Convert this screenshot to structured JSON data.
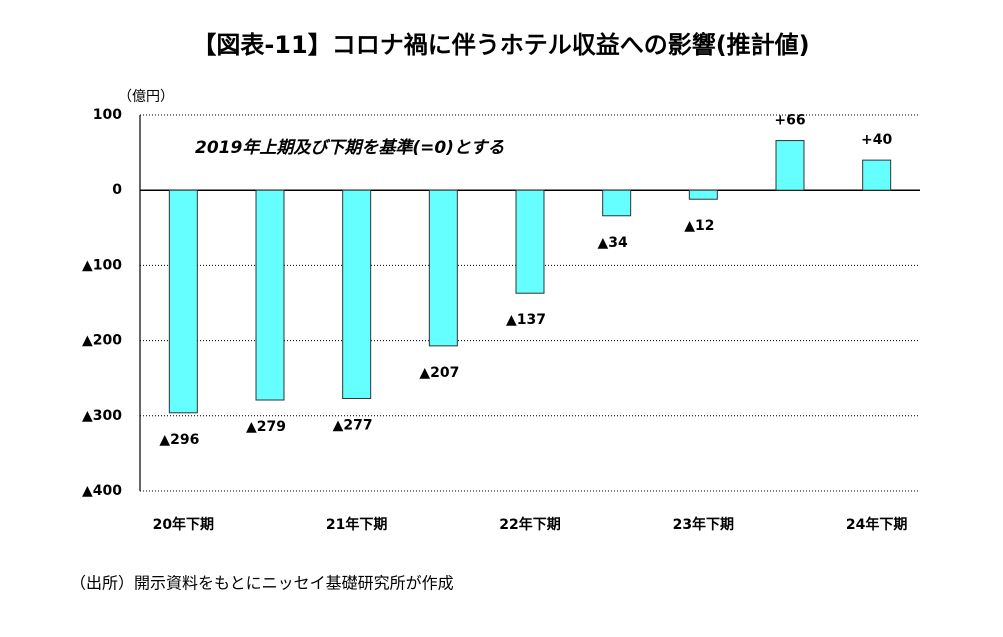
{
  "chart_data": {
    "type": "bar",
    "title": "【図表-11】コロナ禍に伴うホテル収益への影響(推計値)",
    "y_unit": "（億円）",
    "annotation": "2019年上期及び下期を基準(=0)とする",
    "source": "（出所）開示資料をもとにニッセイ基礎研究所が作成",
    "categories": [
      "20年下期",
      null,
      "21年下期",
      null,
      "22年下期",
      null,
      "23年下期",
      null,
      "24年下期"
    ],
    "values": [
      -296,
      -279,
      -277,
      -207,
      -137,
      -34,
      -12,
      66,
      40
    ],
    "value_labels": [
      "▲296",
      "▲279",
      "▲277",
      "▲207",
      "▲137",
      "▲34",
      "▲12",
      "+66",
      "+40"
    ],
    "color": "#66ffff",
    "ylim": [
      -400,
      100
    ],
    "yticks": [
      100,
      0,
      {
        "value": -100,
        "label": "▲100"
      },
      {
        "value": -200,
        "label": "▲200"
      },
      {
        "value": -300,
        "label": "▲300"
      },
      {
        "value": -400,
        "label": "▲400"
      }
    ],
    "grid": true
  }
}
